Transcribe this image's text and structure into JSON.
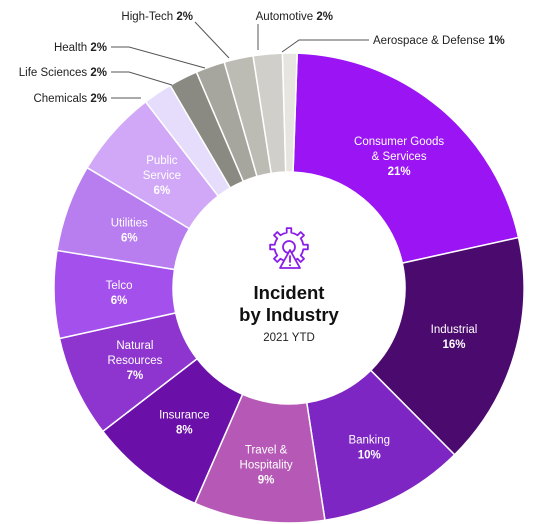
{
  "chart_data": {
    "type": "pie",
    "title_lines": [
      "Incident",
      "by Industry"
    ],
    "subtitle": "2021 YTD",
    "icon": "gear-warning-icon",
    "icon_color": "#8a1ee8",
    "slices": [
      {
        "name": "Consumer Goods & Services",
        "lines": [
          "Consumer Goods",
          "& Services"
        ],
        "value": 21,
        "pct_label": "21%",
        "color": "#9a14f4",
        "text_color": "#ffffff",
        "outside": false
      },
      {
        "name": "Industrial",
        "lines": [
          "Industrial"
        ],
        "value": 16,
        "pct_label": "16%",
        "color": "#4b0a6e",
        "text_color": "#ffffff",
        "outside": false
      },
      {
        "name": "Banking",
        "lines": [
          "Banking"
        ],
        "value": 10,
        "pct_label": "10%",
        "color": "#7e26c4",
        "text_color": "#ffffff",
        "outside": false
      },
      {
        "name": "Travel & Hospitality",
        "lines": [
          "Travel &",
          "Hospitality"
        ],
        "value": 9,
        "pct_label": "9%",
        "color": "#b659b6",
        "text_color": "#ffffff",
        "outside": false
      },
      {
        "name": "Insurance",
        "lines": [
          "Insurance"
        ],
        "value": 8,
        "pct_label": "8%",
        "color": "#6a0fa8",
        "text_color": "#ffffff",
        "outside": false
      },
      {
        "name": "Natural Resources",
        "lines": [
          "Natural",
          "Resources"
        ],
        "value": 7,
        "pct_label": "7%",
        "color": "#8f35cf",
        "text_color": "#ffffff",
        "outside": false
      },
      {
        "name": "Telco",
        "lines": [
          "Telco"
        ],
        "value": 6,
        "pct_label": "6%",
        "color": "#a350ec",
        "text_color": "#ffffff",
        "outside": false
      },
      {
        "name": "Utilities",
        "lines": [
          "Utilities"
        ],
        "value": 6,
        "pct_label": "6%",
        "color": "#b87ef0",
        "text_color": "#ffffff",
        "outside": false
      },
      {
        "name": "Public Service",
        "lines": [
          "Public",
          "Service"
        ],
        "value": 6,
        "pct_label": "6%",
        "color": "#d1a8f8",
        "text_color": "#ffffff",
        "outside": false
      },
      {
        "name": "Chemicals",
        "lines": [
          "Chemicals"
        ],
        "value": 2,
        "pct_label": "2%",
        "color": "#e6dcfb",
        "text_color": "#222222",
        "outside": true
      },
      {
        "name": "Life Sciences",
        "lines": [
          "Life Sciences"
        ],
        "value": 2,
        "pct_label": "2%",
        "color": "#8b8a82",
        "text_color": "#222222",
        "outside": true
      },
      {
        "name": "Health",
        "lines": [
          "Health"
        ],
        "value": 2,
        "pct_label": "2%",
        "color": "#a7a69e",
        "text_color": "#222222",
        "outside": true
      },
      {
        "name": "High-Tech",
        "lines": [
          "High-Tech"
        ],
        "value": 2,
        "pct_label": "2%",
        "color": "#bcbbb4",
        "text_color": "#222222",
        "outside": true
      },
      {
        "name": "Automotive",
        "lines": [
          "Automotive"
        ],
        "value": 2,
        "pct_label": "2%",
        "color": "#d0cfc9",
        "text_color": "#222222",
        "outside": true
      },
      {
        "name": "Aerospace & Defense",
        "lines": [
          "Aerospace & Defense"
        ],
        "value": 1,
        "pct_label": "1%",
        "color": "#e6e5df",
        "text_color": "#222222",
        "outside": true
      }
    ]
  }
}
